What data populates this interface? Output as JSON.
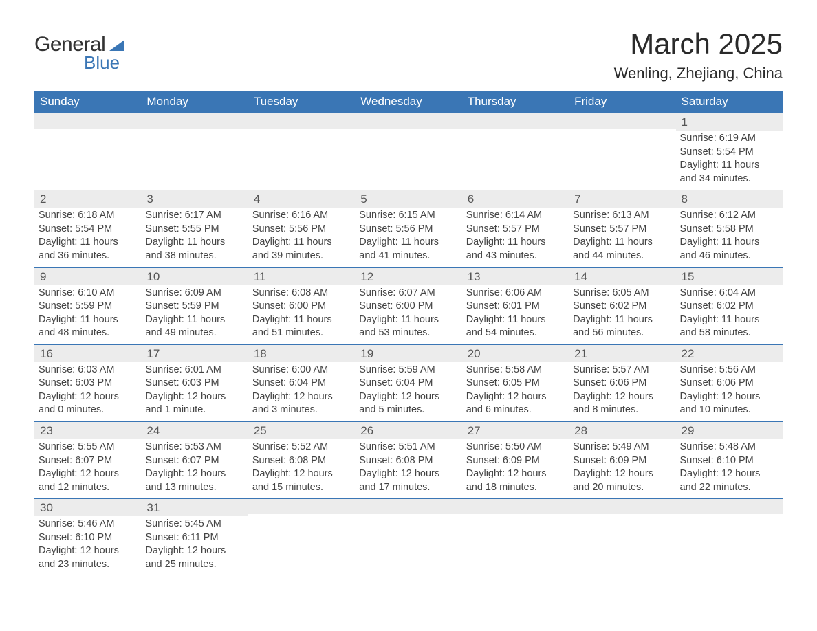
{
  "header": {
    "logo_line1": "General",
    "logo_line2": "Blue",
    "month_title": "March 2025",
    "location": "Wenling, Zhejiang, China"
  },
  "style": {
    "header_bg": "#3a76b5",
    "header_fg": "#ffffff",
    "daynum_bg": "#ececec",
    "row_border": "#3a76b5",
    "body_text": "#444444",
    "daynum_text": "#555555",
    "page_bg": "#ffffff",
    "th_fontsize": 17,
    "daynum_fontsize": 17,
    "data_fontsize": 14.5,
    "title_fontsize": 42,
    "location_fontsize": 22
  },
  "calendar": {
    "type": "table",
    "columns": [
      "Sunday",
      "Monday",
      "Tuesday",
      "Wednesday",
      "Thursday",
      "Friday",
      "Saturday"
    ],
    "weeks": [
      [
        null,
        null,
        null,
        null,
        null,
        null,
        {
          "n": "1",
          "sr": "Sunrise: 6:19 AM",
          "ss": "Sunset: 5:54 PM",
          "d1": "Daylight: 11 hours",
          "d2": "and 34 minutes."
        }
      ],
      [
        {
          "n": "2",
          "sr": "Sunrise: 6:18 AM",
          "ss": "Sunset: 5:54 PM",
          "d1": "Daylight: 11 hours",
          "d2": "and 36 minutes."
        },
        {
          "n": "3",
          "sr": "Sunrise: 6:17 AM",
          "ss": "Sunset: 5:55 PM",
          "d1": "Daylight: 11 hours",
          "d2": "and 38 minutes."
        },
        {
          "n": "4",
          "sr": "Sunrise: 6:16 AM",
          "ss": "Sunset: 5:56 PM",
          "d1": "Daylight: 11 hours",
          "d2": "and 39 minutes."
        },
        {
          "n": "5",
          "sr": "Sunrise: 6:15 AM",
          "ss": "Sunset: 5:56 PM",
          "d1": "Daylight: 11 hours",
          "d2": "and 41 minutes."
        },
        {
          "n": "6",
          "sr": "Sunrise: 6:14 AM",
          "ss": "Sunset: 5:57 PM",
          "d1": "Daylight: 11 hours",
          "d2": "and 43 minutes."
        },
        {
          "n": "7",
          "sr": "Sunrise: 6:13 AM",
          "ss": "Sunset: 5:57 PM",
          "d1": "Daylight: 11 hours",
          "d2": "and 44 minutes."
        },
        {
          "n": "8",
          "sr": "Sunrise: 6:12 AM",
          "ss": "Sunset: 5:58 PM",
          "d1": "Daylight: 11 hours",
          "d2": "and 46 minutes."
        }
      ],
      [
        {
          "n": "9",
          "sr": "Sunrise: 6:10 AM",
          "ss": "Sunset: 5:59 PM",
          "d1": "Daylight: 11 hours",
          "d2": "and 48 minutes."
        },
        {
          "n": "10",
          "sr": "Sunrise: 6:09 AM",
          "ss": "Sunset: 5:59 PM",
          "d1": "Daylight: 11 hours",
          "d2": "and 49 minutes."
        },
        {
          "n": "11",
          "sr": "Sunrise: 6:08 AM",
          "ss": "Sunset: 6:00 PM",
          "d1": "Daylight: 11 hours",
          "d2": "and 51 minutes."
        },
        {
          "n": "12",
          "sr": "Sunrise: 6:07 AM",
          "ss": "Sunset: 6:00 PM",
          "d1": "Daylight: 11 hours",
          "d2": "and 53 minutes."
        },
        {
          "n": "13",
          "sr": "Sunrise: 6:06 AM",
          "ss": "Sunset: 6:01 PM",
          "d1": "Daylight: 11 hours",
          "d2": "and 54 minutes."
        },
        {
          "n": "14",
          "sr": "Sunrise: 6:05 AM",
          "ss": "Sunset: 6:02 PM",
          "d1": "Daylight: 11 hours",
          "d2": "and 56 minutes."
        },
        {
          "n": "15",
          "sr": "Sunrise: 6:04 AM",
          "ss": "Sunset: 6:02 PM",
          "d1": "Daylight: 11 hours",
          "d2": "and 58 minutes."
        }
      ],
      [
        {
          "n": "16",
          "sr": "Sunrise: 6:03 AM",
          "ss": "Sunset: 6:03 PM",
          "d1": "Daylight: 12 hours",
          "d2": "and 0 minutes."
        },
        {
          "n": "17",
          "sr": "Sunrise: 6:01 AM",
          "ss": "Sunset: 6:03 PM",
          "d1": "Daylight: 12 hours",
          "d2": "and 1 minute."
        },
        {
          "n": "18",
          "sr": "Sunrise: 6:00 AM",
          "ss": "Sunset: 6:04 PM",
          "d1": "Daylight: 12 hours",
          "d2": "and 3 minutes."
        },
        {
          "n": "19",
          "sr": "Sunrise: 5:59 AM",
          "ss": "Sunset: 6:04 PM",
          "d1": "Daylight: 12 hours",
          "d2": "and 5 minutes."
        },
        {
          "n": "20",
          "sr": "Sunrise: 5:58 AM",
          "ss": "Sunset: 6:05 PM",
          "d1": "Daylight: 12 hours",
          "d2": "and 6 minutes."
        },
        {
          "n": "21",
          "sr": "Sunrise: 5:57 AM",
          "ss": "Sunset: 6:06 PM",
          "d1": "Daylight: 12 hours",
          "d2": "and 8 minutes."
        },
        {
          "n": "22",
          "sr": "Sunrise: 5:56 AM",
          "ss": "Sunset: 6:06 PM",
          "d1": "Daylight: 12 hours",
          "d2": "and 10 minutes."
        }
      ],
      [
        {
          "n": "23",
          "sr": "Sunrise: 5:55 AM",
          "ss": "Sunset: 6:07 PM",
          "d1": "Daylight: 12 hours",
          "d2": "and 12 minutes."
        },
        {
          "n": "24",
          "sr": "Sunrise: 5:53 AM",
          "ss": "Sunset: 6:07 PM",
          "d1": "Daylight: 12 hours",
          "d2": "and 13 minutes."
        },
        {
          "n": "25",
          "sr": "Sunrise: 5:52 AM",
          "ss": "Sunset: 6:08 PM",
          "d1": "Daylight: 12 hours",
          "d2": "and 15 minutes."
        },
        {
          "n": "26",
          "sr": "Sunrise: 5:51 AM",
          "ss": "Sunset: 6:08 PM",
          "d1": "Daylight: 12 hours",
          "d2": "and 17 minutes."
        },
        {
          "n": "27",
          "sr": "Sunrise: 5:50 AM",
          "ss": "Sunset: 6:09 PM",
          "d1": "Daylight: 12 hours",
          "d2": "and 18 minutes."
        },
        {
          "n": "28",
          "sr": "Sunrise: 5:49 AM",
          "ss": "Sunset: 6:09 PM",
          "d1": "Daylight: 12 hours",
          "d2": "and 20 minutes."
        },
        {
          "n": "29",
          "sr": "Sunrise: 5:48 AM",
          "ss": "Sunset: 6:10 PM",
          "d1": "Daylight: 12 hours",
          "d2": "and 22 minutes."
        }
      ],
      [
        {
          "n": "30",
          "sr": "Sunrise: 5:46 AM",
          "ss": "Sunset: 6:10 PM",
          "d1": "Daylight: 12 hours",
          "d2": "and 23 minutes."
        },
        {
          "n": "31",
          "sr": "Sunrise: 5:45 AM",
          "ss": "Sunset: 6:11 PM",
          "d1": "Daylight: 12 hours",
          "d2": "and 25 minutes."
        },
        null,
        null,
        null,
        null,
        null
      ]
    ]
  }
}
